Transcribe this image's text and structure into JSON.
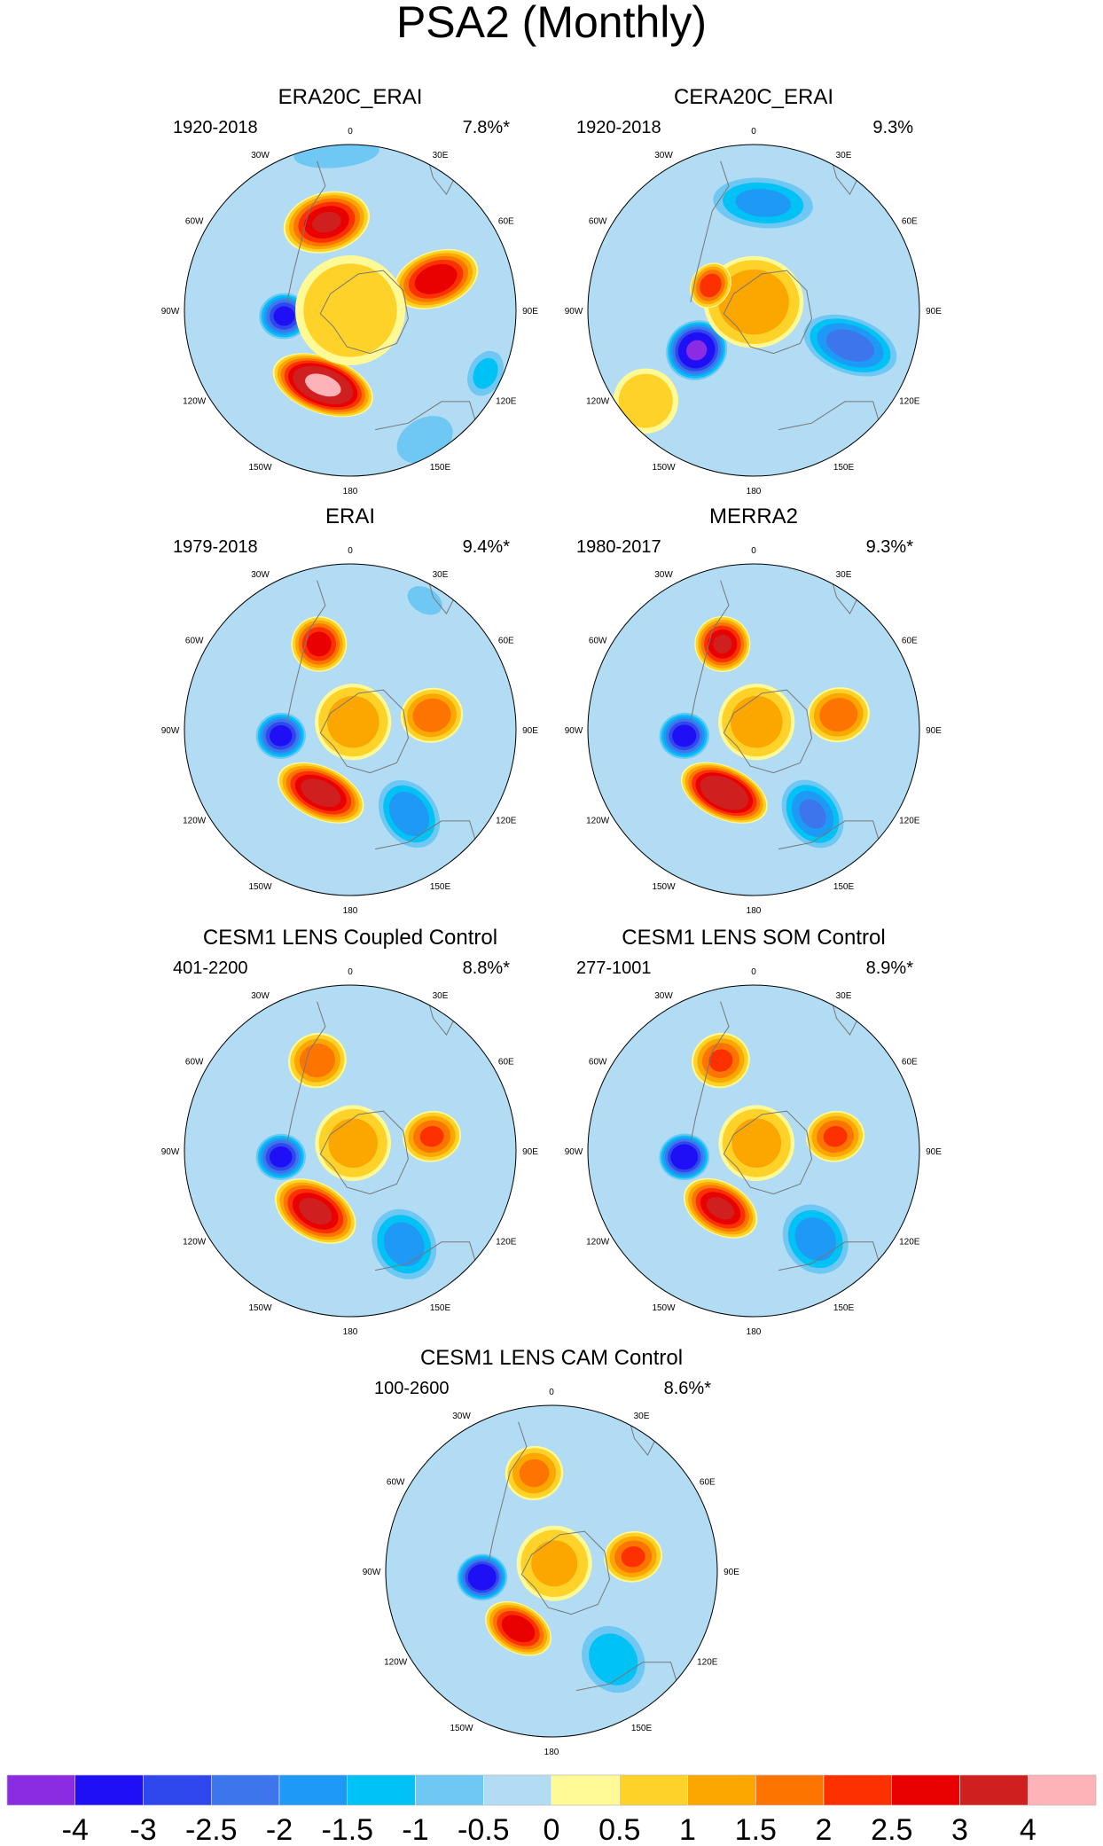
{
  "figure": {
    "title": "PSA2 (Monthly)"
  },
  "panels": [
    {
      "title": "ERA20C_ERAI",
      "period": "1920-2018",
      "variance": "7.8%*",
      "blobs": [
        {
          "lon": -15,
          "colat": 0.55,
          "val": 3.0,
          "w": 0.22,
          "h": 0.15
        },
        {
          "lon": 70,
          "colat": 0.55,
          "val": 2.9,
          "w": 0.14,
          "h": 0.22
        },
        {
          "lon": 115,
          "colat": 0.9,
          "val": -1.1,
          "w": 0.14,
          "h": 0.1
        },
        {
          "lon": -160,
          "colat": 0.48,
          "val": 4.2,
          "w": 0.26,
          "h": 0.14
        },
        {
          "lon": -95,
          "colat": 0.4,
          "val": -3.2,
          "w": 0.12,
          "h": 0.13
        },
        {
          "lon": 150,
          "colat": 0.9,
          "val": -0.7,
          "w": 0.2,
          "h": 0.14
        },
        {
          "lon": -5,
          "colat": 0.95,
          "val": -0.6,
          "w": 0.3,
          "h": 0.1
        },
        {
          "lon": 0,
          "colat": 0.0,
          "val": 0.8,
          "w": 0.3,
          "h": 0.3
        }
      ]
    },
    {
      "title": "CERA20C_ERAI",
      "period": "1920-2018",
      "variance": "9.3%",
      "blobs": [
        {
          "lon": 5,
          "colat": 0.65,
          "val": -1.6,
          "w": 0.28,
          "h": 0.14
        },
        {
          "lon": 110,
          "colat": 0.62,
          "val": -2.2,
          "w": 0.15,
          "h": 0.26
        },
        {
          "lon": -125,
          "colat": 0.42,
          "val": -4.1,
          "w": 0.15,
          "h": 0.16
        },
        {
          "lon": 0,
          "colat": 0.05,
          "val": 1.4,
          "w": 0.26,
          "h": 0.24
        },
        {
          "lon": -130,
          "colat": 0.85,
          "val": 0.7,
          "w": 0.18,
          "h": 0.18
        },
        {
          "lon": -60,
          "colat": 0.3,
          "val": 2.3,
          "w": 0.12,
          "h": 0.1
        }
      ]
    },
    {
      "title": "ERAI",
      "period": "1979-2018",
      "variance": "9.4%*",
      "blobs": [
        {
          "lon": -20,
          "colat": 0.55,
          "val": 2.7,
          "w": 0.14,
          "h": 0.14
        },
        {
          "lon": 80,
          "colat": 0.5,
          "val": 1.9,
          "w": 0.14,
          "h": 0.16
        },
        {
          "lon": 145,
          "colat": 0.62,
          "val": -1.9,
          "w": 0.15,
          "h": 0.2
        },
        {
          "lon": -155,
          "colat": 0.42,
          "val": 3.4,
          "w": 0.23,
          "h": 0.13
        },
        {
          "lon": -95,
          "colat": 0.42,
          "val": -3.3,
          "w": 0.12,
          "h": 0.13
        },
        {
          "lon": 30,
          "colat": 0.9,
          "val": -0.8,
          "w": 0.12,
          "h": 0.08
        },
        {
          "lon": 20,
          "colat": 0.05,
          "val": 1.3,
          "w": 0.2,
          "h": 0.2
        }
      ]
    },
    {
      "title": "MERRA2",
      "period": "1980-2017",
      "variance": "9.3%*",
      "blobs": [
        {
          "lon": -20,
          "colat": 0.55,
          "val": 3.0,
          "w": 0.14,
          "h": 0.14
        },
        {
          "lon": 80,
          "colat": 0.52,
          "val": 1.9,
          "w": 0.14,
          "h": 0.16
        },
        {
          "lon": 145,
          "colat": 0.62,
          "val": -2.0,
          "w": 0.15,
          "h": 0.2
        },
        {
          "lon": -155,
          "colat": 0.42,
          "val": 3.9,
          "w": 0.23,
          "h": 0.13
        },
        {
          "lon": -95,
          "colat": 0.42,
          "val": -3.4,
          "w": 0.12,
          "h": 0.13
        },
        {
          "lon": 20,
          "colat": 0.05,
          "val": 1.3,
          "w": 0.2,
          "h": 0.2
        }
      ]
    },
    {
      "title": "CESM1 LENS Coupled Control",
      "period": "401-2200",
      "variance": "8.8%*",
      "blobs": [
        {
          "lon": -20,
          "colat": 0.58,
          "val": 1.9,
          "w": 0.15,
          "h": 0.14
        },
        {
          "lon": 80,
          "colat": 0.5,
          "val": 2.0,
          "w": 0.13,
          "h": 0.15
        },
        {
          "lon": 150,
          "colat": 0.65,
          "val": -1.8,
          "w": 0.17,
          "h": 0.2
        },
        {
          "lon": -150,
          "colat": 0.42,
          "val": 3.2,
          "w": 0.22,
          "h": 0.14
        },
        {
          "lon": -95,
          "colat": 0.42,
          "val": -3.3,
          "w": 0.12,
          "h": 0.13
        },
        {
          "lon": 20,
          "colat": 0.05,
          "val": 1.2,
          "w": 0.2,
          "h": 0.2
        }
      ]
    },
    {
      "title": "CESM1 LENS SOM Control",
      "period": "277-1001",
      "variance": "8.9%*",
      "blobs": [
        {
          "lon": -20,
          "colat": 0.58,
          "val": 2.0,
          "w": 0.15,
          "h": 0.14
        },
        {
          "lon": 80,
          "colat": 0.5,
          "val": 2.0,
          "w": 0.13,
          "h": 0.15
        },
        {
          "lon": 145,
          "colat": 0.65,
          "val": -1.8,
          "w": 0.17,
          "h": 0.2
        },
        {
          "lon": -150,
          "colat": 0.4,
          "val": 3.1,
          "w": 0.2,
          "h": 0.13
        },
        {
          "lon": -95,
          "colat": 0.42,
          "val": -3.7,
          "w": 0.12,
          "h": 0.13
        },
        {
          "lon": 20,
          "colat": 0.05,
          "val": 1.2,
          "w": 0.2,
          "h": 0.2
        }
      ]
    },
    {
      "title": "CESM1 LENS CAM Control",
      "period": "100-2600",
      "variance": "8.6%*",
      "blobs": [
        {
          "lon": -10,
          "colat": 0.6,
          "val": 1.6,
          "w": 0.15,
          "h": 0.14
        },
        {
          "lon": 80,
          "colat": 0.5,
          "val": 2.0,
          "w": 0.13,
          "h": 0.15
        },
        {
          "lon": 145,
          "colat": 0.65,
          "val": -1.4,
          "w": 0.17,
          "h": 0.2
        },
        {
          "lon": -150,
          "colat": 0.4,
          "val": 2.9,
          "w": 0.18,
          "h": 0.12
        },
        {
          "lon": -95,
          "colat": 0.42,
          "val": -3.8,
          "w": 0.12,
          "h": 0.13
        },
        {
          "lon": 20,
          "colat": 0.05,
          "val": 1.1,
          "w": 0.2,
          "h": 0.2
        }
      ]
    }
  ],
  "lon_labels": [
    {
      "lon": 0,
      "text": "0"
    },
    {
      "lon": 30,
      "text": "30E"
    },
    {
      "lon": 60,
      "text": "60E"
    },
    {
      "lon": 90,
      "text": "90E"
    },
    {
      "lon": 120,
      "text": "120E"
    },
    {
      "lon": 150,
      "text": "150E"
    },
    {
      "lon": 180,
      "text": "180"
    },
    {
      "lon": -150,
      "text": "150W"
    },
    {
      "lon": -120,
      "text": "120W"
    },
    {
      "lon": -90,
      "text": "90W"
    },
    {
      "lon": -60,
      "text": "60W"
    },
    {
      "lon": -30,
      "text": "30W"
    }
  ],
  "chart_data": {
    "type": "heatmap",
    "title": "PSA2 (Monthly)",
    "projection": "south polar stereographic",
    "panels": [
      "ERA20C_ERAI",
      "CERA20C_ERAI",
      "ERAI",
      "MERRA2",
      "CESM1 LENS Coupled Control",
      "CESM1 LENS SOM Control",
      "CESM1 LENS CAM Control"
    ],
    "colorbar": {
      "levels": [
        "-4",
        "-3",
        "-2.5",
        "-2",
        "-1.5",
        "-1",
        "-0.5",
        "0",
        "0.5",
        "1",
        "1.5",
        "2",
        "2.5",
        "3",
        "4"
      ],
      "level_values": [
        -4,
        -3,
        -2.5,
        -2,
        -1.5,
        -1,
        -0.5,
        0,
        0.5,
        1,
        1.5,
        2,
        2.5,
        3,
        4
      ],
      "colors": [
        "#8b2be2",
        "#1e0ff5",
        "#2f48ee",
        "#3c75ec",
        "#1e99f5",
        "#00c2f5",
        "#6fc7f3",
        "#b2dcf3",
        "#fffa95",
        "#fed229",
        "#fca600",
        "#fd7500",
        "#fd3000",
        "#e90000",
        "#cf1f1f",
        "#fdb3b7"
      ]
    },
    "land_color": "#ffffff",
    "coast_color": "#777777"
  }
}
